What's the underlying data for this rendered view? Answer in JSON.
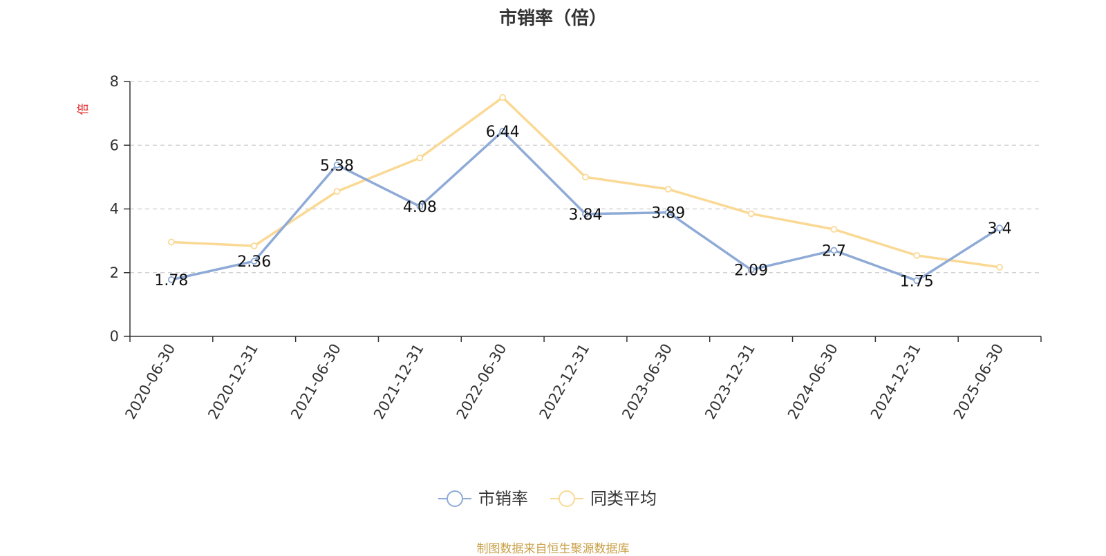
{
  "chart_data": {
    "type": "line",
    "title": "市销率（倍）",
    "ylabel": "倍",
    "xlabel": "",
    "ylim": [
      0,
      8
    ],
    "yticks": [
      0,
      2,
      4,
      6,
      8
    ],
    "grid": true,
    "legend_position": "bottom-center",
    "categories": [
      "2020-06-30",
      "2020-12-31",
      "2021-06-30",
      "2021-12-31",
      "2022-06-30",
      "2022-12-31",
      "2023-06-30",
      "2023-12-31",
      "2024-06-30",
      "2024-12-31",
      "2025-06-30"
    ],
    "series": [
      {
        "name": "市销率",
        "values": [
          1.78,
          2.36,
          5.38,
          4.08,
          6.44,
          3.84,
          3.89,
          2.09,
          2.7,
          1.75,
          3.4
        ],
        "color": "#8eaad6",
        "show_labels": true
      },
      {
        "name": "同类平均",
        "values": [
          2.96,
          2.84,
          4.55,
          5.6,
          7.5,
          5.0,
          4.62,
          3.85,
          3.36,
          2.54,
          2.17
        ],
        "color": "#fad995",
        "show_labels": false
      }
    ]
  },
  "footer": {
    "source": "制图数据来自恒生聚源数据库"
  },
  "colors": {
    "axis": "#333333",
    "grid": "#cccccc",
    "ylabel": "#e02020",
    "source": "#c8a047"
  }
}
